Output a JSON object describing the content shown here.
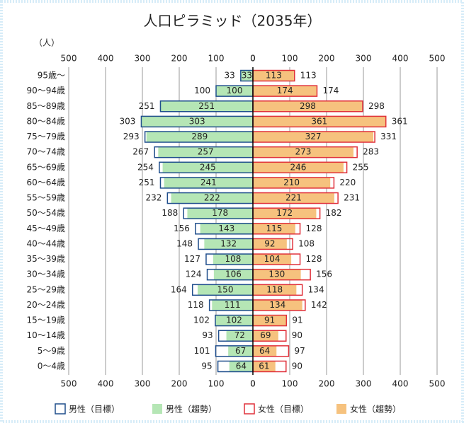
{
  "chart_data": {
    "type": "pyramid",
    "title": "人口ピラミッド（2035年）",
    "unit_label": "（人）",
    "categories": [
      "95歳～",
      "90～94歳",
      "85～89歳",
      "80～84歳",
      "75～79歳",
      "70～74歳",
      "65～69歳",
      "60～64歳",
      "55～59歳",
      "50～54歳",
      "45～49歳",
      "40～44歳",
      "35～39歳",
      "30～34歳",
      "25～29歳",
      "20～24歳",
      "15～19歳",
      "10～14歳",
      "5～9歳",
      "0～4歳"
    ],
    "xlim": [
      0,
      500
    ],
    "xticks_left": [
      500,
      400,
      300,
      200,
      100,
      0
    ],
    "xticks_right": [
      0,
      100,
      200,
      300,
      400,
      500
    ],
    "grid": true,
    "series": [
      {
        "name": "男性（目標）",
        "side": "left",
        "style": "outline",
        "color": "#1f4e8c",
        "values": [
          33,
          100,
          251,
          303,
          293,
          267,
          254,
          251,
          232,
          188,
          156,
          148,
          127,
          124,
          164,
          118,
          102,
          93,
          101,
          95
        ]
      },
      {
        "name": "男性（趨勢）",
        "side": "left",
        "style": "fill",
        "color": "#b5e6b5",
        "values": [
          33,
          100,
          251,
          303,
          289,
          257,
          245,
          241,
          222,
          178,
          143,
          132,
          108,
          106,
          150,
          111,
          102,
          72,
          67,
          64
        ]
      },
      {
        "name": "女性（目標）",
        "side": "right",
        "style": "outline",
        "color": "#e0303a",
        "values": [
          113,
          174,
          298,
          361,
          331,
          283,
          255,
          220,
          231,
          182,
          128,
          108,
          128,
          156,
          134,
          142,
          91,
          90,
          97,
          90
        ]
      },
      {
        "name": "女性（趨勢）",
        "side": "right",
        "style": "fill",
        "color": "#f6c27e",
        "values": [
          113,
          174,
          298,
          361,
          327,
          273,
          246,
          210,
          221,
          172,
          115,
          92,
          104,
          130,
          118,
          134,
          91,
          69,
          64,
          61
        ]
      }
    ]
  }
}
